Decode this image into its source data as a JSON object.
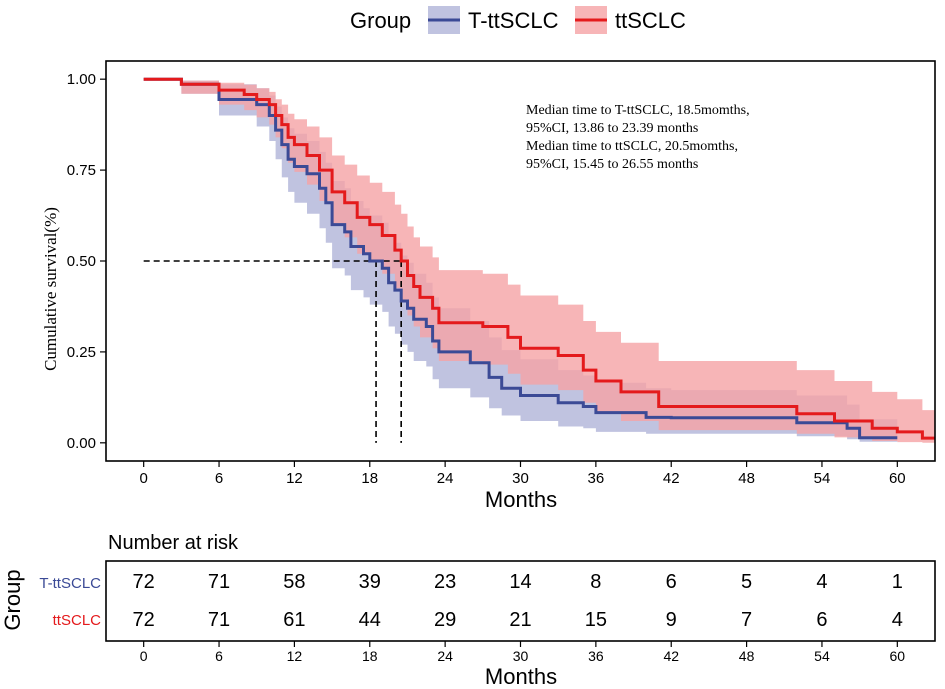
{
  "colors": {
    "t_ttsclc": "#3b4a96",
    "t_ttsclc_band": "#b5b8da",
    "ttsclc": "#e41a1c",
    "ttsclc_band": "#f5a3a5",
    "axis": "#000000"
  },
  "chart_data": {
    "type": "km-survival",
    "legend": {
      "title": "Group",
      "placement": "top-center",
      "entries": [
        "T-ttSCLC",
        "ttSCLC"
      ]
    },
    "xlabel": "Months",
    "ylabel": "Cumulative survival(%)",
    "xlim": [
      -3,
      63
    ],
    "ylim": [
      -0.05,
      1.05
    ],
    "x_ticks": [
      0,
      6,
      12,
      18,
      24,
      30,
      36,
      42,
      48,
      54,
      60
    ],
    "y_ticks": [
      0,
      0.25,
      0.5,
      0.75,
      1.0
    ],
    "y_tick_labels": [
      "0.00",
      "0.25",
      "0.50",
      "0.75",
      "1.00"
    ],
    "annotation": [
      "Median time to T-ttSCLC, 18.5momths,",
      "95%CI, 13.86 to 23.39 months",
      "Median time to ttSCLC, 20.5momths,",
      "95%CI, 15.45 to 26.55 months"
    ],
    "medians": [
      18.5,
      20.5
    ],
    "series": [
      {
        "name": "T-ttSCLC",
        "steps": [
          [
            0,
            1.0
          ],
          [
            3,
            0.986
          ],
          [
            6,
            0.944
          ],
          [
            9,
            0.93
          ],
          [
            10,
            0.9
          ],
          [
            10.5,
            0.86
          ],
          [
            11,
            0.82
          ],
          [
            11.5,
            0.78
          ],
          [
            12,
            0.76
          ],
          [
            13,
            0.74
          ],
          [
            14,
            0.7
          ],
          [
            14.5,
            0.66
          ],
          [
            15,
            0.6
          ],
          [
            16,
            0.58
          ],
          [
            16.5,
            0.54
          ],
          [
            17.5,
            0.52
          ],
          [
            18,
            0.5
          ],
          [
            19,
            0.48
          ],
          [
            19.5,
            0.44
          ],
          [
            20,
            0.42
          ],
          [
            20.5,
            0.39
          ],
          [
            21,
            0.37
          ],
          [
            21.5,
            0.34
          ],
          [
            22.5,
            0.32
          ],
          [
            23,
            0.28
          ],
          [
            23.5,
            0.25
          ],
          [
            26,
            0.22
          ],
          [
            27.5,
            0.18
          ],
          [
            28.5,
            0.15
          ],
          [
            30,
            0.13
          ],
          [
            33,
            0.11
          ],
          [
            35,
            0.1
          ],
          [
            36,
            0.083
          ],
          [
            40,
            0.07
          ],
          [
            42,
            0.069
          ],
          [
            52,
            0.055
          ],
          [
            56,
            0.04
          ],
          [
            57,
            0.014
          ],
          [
            60,
            0.014
          ]
        ],
        "upper": [
          [
            0,
            1.0
          ],
          [
            3,
            0.996
          ],
          [
            6,
            0.986
          ],
          [
            9,
            0.975
          ],
          [
            10,
            0.955
          ],
          [
            10.5,
            0.925
          ],
          [
            11,
            0.895
          ],
          [
            11.5,
            0.865
          ],
          [
            12,
            0.85
          ],
          [
            13,
            0.83
          ],
          [
            14,
            0.8
          ],
          [
            14.5,
            0.77
          ],
          [
            15,
            0.72
          ],
          [
            16,
            0.7
          ],
          [
            16.5,
            0.665
          ],
          [
            17.5,
            0.645
          ],
          [
            18,
            0.625
          ],
          [
            19,
            0.605
          ],
          [
            19.5,
            0.57
          ],
          [
            20,
            0.55
          ],
          [
            20.5,
            0.515
          ],
          [
            21,
            0.495
          ],
          [
            21.5,
            0.465
          ],
          [
            22.5,
            0.44
          ],
          [
            23,
            0.4
          ],
          [
            23.5,
            0.37
          ],
          [
            26,
            0.335
          ],
          [
            27.5,
            0.29
          ],
          [
            28.5,
            0.255
          ],
          [
            30,
            0.23
          ],
          [
            33,
            0.2
          ],
          [
            35,
            0.185
          ],
          [
            36,
            0.165
          ],
          [
            40,
            0.15
          ],
          [
            42,
            0.145
          ],
          [
            52,
            0.13
          ],
          [
            56,
            0.105
          ],
          [
            57,
            0.065
          ],
          [
            60,
            0.065
          ]
        ],
        "lower": [
          [
            0,
            1.0
          ],
          [
            3,
            0.96
          ],
          [
            6,
            0.9
          ],
          [
            9,
            0.87
          ],
          [
            10,
            0.83
          ],
          [
            10.5,
            0.78
          ],
          [
            11,
            0.73
          ],
          [
            11.5,
            0.69
          ],
          [
            12,
            0.66
          ],
          [
            13,
            0.63
          ],
          [
            14,
            0.59
          ],
          [
            14.5,
            0.55
          ],
          [
            15,
            0.48
          ],
          [
            16,
            0.46
          ],
          [
            16.5,
            0.42
          ],
          [
            17.5,
            0.4
          ],
          [
            18,
            0.38
          ],
          [
            19,
            0.36
          ],
          [
            19.5,
            0.32
          ],
          [
            20,
            0.3
          ],
          [
            20.5,
            0.27
          ],
          [
            21,
            0.25
          ],
          [
            21.5,
            0.225
          ],
          [
            22.5,
            0.21
          ],
          [
            23,
            0.175
          ],
          [
            23.5,
            0.15
          ],
          [
            26,
            0.125
          ],
          [
            27.5,
            0.095
          ],
          [
            28.5,
            0.075
          ],
          [
            30,
            0.06
          ],
          [
            33,
            0.045
          ],
          [
            35,
            0.04
          ],
          [
            36,
            0.03
          ],
          [
            40,
            0.025
          ],
          [
            42,
            0.025
          ],
          [
            52,
            0.018
          ],
          [
            56,
            0.01
          ],
          [
            57,
            0.003
          ],
          [
            60,
            0.003
          ]
        ]
      },
      {
        "name": "ttSCLC",
        "steps": [
          [
            0,
            1.0
          ],
          [
            3,
            0.986
          ],
          [
            6,
            0.97
          ],
          [
            8,
            0.958
          ],
          [
            9,
            0.944
          ],
          [
            10,
            0.93
          ],
          [
            10.5,
            0.9
          ],
          [
            11,
            0.875
          ],
          [
            11.5,
            0.84
          ],
          [
            12,
            0.82
          ],
          [
            13,
            0.79
          ],
          [
            14,
            0.75
          ],
          [
            15,
            0.69
          ],
          [
            16,
            0.66
          ],
          [
            17,
            0.62
          ],
          [
            18,
            0.6
          ],
          [
            19,
            0.57
          ],
          [
            20,
            0.53
          ],
          [
            20.5,
            0.5
          ],
          [
            21,
            0.46
          ],
          [
            21.5,
            0.43
          ],
          [
            22,
            0.4
          ],
          [
            23,
            0.37
          ],
          [
            23.5,
            0.33
          ],
          [
            27,
            0.32
          ],
          [
            29,
            0.29
          ],
          [
            30,
            0.26
          ],
          [
            33,
            0.24
          ],
          [
            35,
            0.2
          ],
          [
            36,
            0.17
          ],
          [
            38,
            0.14
          ],
          [
            41,
            0.1
          ],
          [
            52,
            0.08
          ],
          [
            55,
            0.06
          ],
          [
            58,
            0.04
          ],
          [
            60,
            0.03
          ],
          [
            62,
            0.013
          ],
          [
            63,
            0.013
          ]
        ],
        "upper": [
          [
            0,
            1.0
          ],
          [
            3,
            0.996
          ],
          [
            6,
            0.99
          ],
          [
            8,
            0.985
          ],
          [
            9,
            0.975
          ],
          [
            10,
            0.965
          ],
          [
            10.5,
            0.945
          ],
          [
            11,
            0.93
          ],
          [
            11.5,
            0.905
          ],
          [
            12,
            0.89
          ],
          [
            13,
            0.87
          ],
          [
            14,
            0.84
          ],
          [
            15,
            0.79
          ],
          [
            16,
            0.765
          ],
          [
            17,
            0.735
          ],
          [
            18,
            0.715
          ],
          [
            19,
            0.69
          ],
          [
            20,
            0.655
          ],
          [
            20.5,
            0.63
          ],
          [
            21,
            0.595
          ],
          [
            21.5,
            0.565
          ],
          [
            22,
            0.54
          ],
          [
            23,
            0.51
          ],
          [
            23.5,
            0.475
          ],
          [
            27,
            0.465
          ],
          [
            29,
            0.435
          ],
          [
            30,
            0.405
          ],
          [
            33,
            0.38
          ],
          [
            35,
            0.335
          ],
          [
            36,
            0.305
          ],
          [
            38,
            0.275
          ],
          [
            41,
            0.225
          ],
          [
            52,
            0.2
          ],
          [
            55,
            0.17
          ],
          [
            58,
            0.14
          ],
          [
            60,
            0.12
          ],
          [
            62,
            0.09
          ],
          [
            63,
            0.09
          ]
        ],
        "lower": [
          [
            0,
            1.0
          ],
          [
            3,
            0.96
          ],
          [
            6,
            0.93
          ],
          [
            8,
            0.915
          ],
          [
            9,
            0.895
          ],
          [
            10,
            0.875
          ],
          [
            10.5,
            0.84
          ],
          [
            11,
            0.81
          ],
          [
            11.5,
            0.77
          ],
          [
            12,
            0.745
          ],
          [
            13,
            0.71
          ],
          [
            14,
            0.665
          ],
          [
            15,
            0.6
          ],
          [
            16,
            0.565
          ],
          [
            17,
            0.52
          ],
          [
            18,
            0.5
          ],
          [
            19,
            0.465
          ],
          [
            20,
            0.425
          ],
          [
            20.5,
            0.39
          ],
          [
            21,
            0.35
          ],
          [
            21.5,
            0.32
          ],
          [
            22,
            0.29
          ],
          [
            23,
            0.26
          ],
          [
            23.5,
            0.225
          ],
          [
            27,
            0.215
          ],
          [
            29,
            0.19
          ],
          [
            30,
            0.16
          ],
          [
            33,
            0.145
          ],
          [
            35,
            0.11
          ],
          [
            36,
            0.085
          ],
          [
            38,
            0.06
          ],
          [
            41,
            0.035
          ],
          [
            52,
            0.025
          ],
          [
            55,
            0.015
          ],
          [
            58,
            0.005
          ],
          [
            60,
            0.002
          ],
          [
            62,
            0.0
          ],
          [
            63,
            0.0
          ]
        ]
      }
    ],
    "risk_table": {
      "title": "Number at risk",
      "ylabel": "Group",
      "xlabel": "Months",
      "times": [
        0,
        6,
        12,
        18,
        24,
        30,
        36,
        42,
        48,
        54,
        60
      ],
      "rows": [
        {
          "name": "T-ttSCLC",
          "counts": [
            72,
            71,
            58,
            39,
            23,
            14,
            8,
            6,
            5,
            4,
            1
          ]
        },
        {
          "name": "ttSCLC",
          "counts": [
            72,
            71,
            61,
            44,
            29,
            21,
            15,
            9,
            7,
            6,
            4
          ]
        }
      ]
    }
  }
}
